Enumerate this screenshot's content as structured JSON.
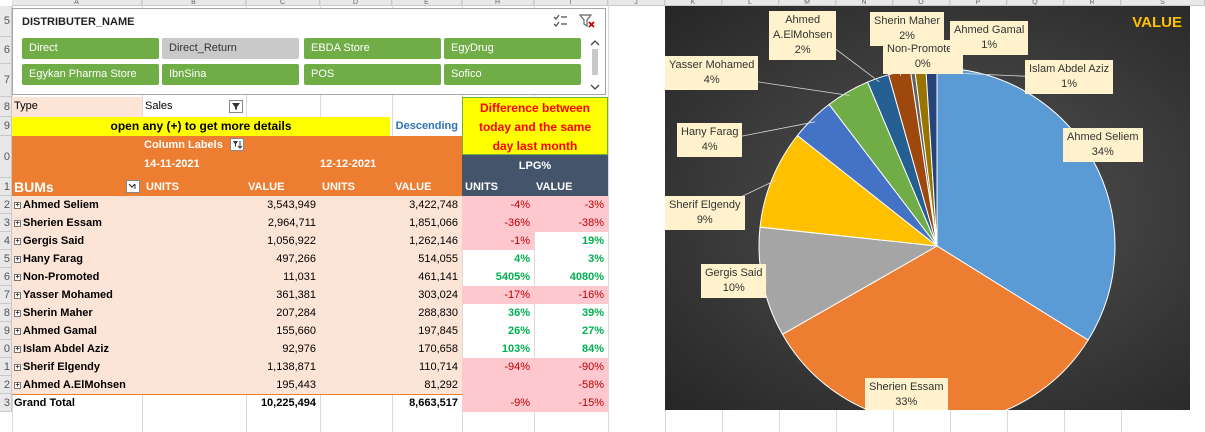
{
  "columns": [
    "A",
    "B",
    "C",
    "D",
    "E",
    "H",
    "I",
    "J",
    "K",
    "L",
    "M",
    "N",
    "O",
    "P",
    "Q",
    "R",
    "S"
  ],
  "rows": [
    "5",
    "6",
    "7",
    "8",
    "9",
    "0",
    "1",
    "2",
    "3",
    "4",
    "5",
    "6",
    "7",
    "8",
    "9",
    "0",
    "1",
    "2",
    "3"
  ],
  "slicer": {
    "title": "DISTRIBUTER_NAME",
    "items": [
      {
        "label": "Direct",
        "selected": true
      },
      {
        "label": "Direct_Return",
        "selected": false
      },
      {
        "label": "EBDA Store",
        "selected": true
      },
      {
        "label": "EgyDrug",
        "selected": true
      },
      {
        "label": "Egykan Pharma Store",
        "selected": true
      },
      {
        "label": "IbnSina",
        "selected": true
      },
      {
        "label": "POS",
        "selected": true
      },
      {
        "label": "Sofico",
        "selected": true
      }
    ],
    "multi_select_icon": "multi-select-icon",
    "clear_filter_icon": "clear-filter-icon"
  },
  "pivot": {
    "type_label": "Type",
    "sales_label": "Sales",
    "banner": "open any (+) to get more details",
    "descending": "Descending",
    "note": "Difference between today and the same day last month",
    "column_labels": "Column Labels",
    "date1": "14-11-2021",
    "date2": "12-12-2021",
    "lpg": "LPG%",
    "bums": "BUMs",
    "units": "UNITS",
    "value": "VALUE",
    "rows": [
      {
        "name": "Ahmed Seliem",
        "v1": "3,543,949",
        "v2": "3,422,748",
        "lu": "-4%",
        "lv": "-3%"
      },
      {
        "name": "Sherien Essam",
        "v1": "2,964,711",
        "v2": "1,851,066",
        "lu": "-36%",
        "lv": "-38%"
      },
      {
        "name": "Gergis Said",
        "v1": "1,056,922",
        "v2": "1,262,146",
        "lu": "-1%",
        "lv": "19%"
      },
      {
        "name": "Hany Farag",
        "v1": "497,266",
        "v2": "514,055",
        "lu": "4%",
        "lv": "3%"
      },
      {
        "name": "Non-Promoted",
        "v1": "11,031",
        "v2": "461,141",
        "lu": "5405%",
        "lv": "4080%"
      },
      {
        "name": "Yasser Mohamed",
        "v1": "361,381",
        "v2": "303,024",
        "lu": "-17%",
        "lv": "-16%"
      },
      {
        "name": "Sherin Maher",
        "v1": "207,284",
        "v2": "288,830",
        "lu": "36%",
        "lv": "39%"
      },
      {
        "name": "Ahmed Gamal",
        "v1": "155,660",
        "v2": "197,845",
        "lu": "26%",
        "lv": "27%"
      },
      {
        "name": "Islam Abdel Aziz",
        "v1": "92,976",
        "v2": "170,658",
        "lu": "103%",
        "lv": "84%"
      },
      {
        "name": "Sherif Elgendy",
        "v1": "1,138,871",
        "v2": "110,714",
        "lu": "-94%",
        "lv": "-90%"
      },
      {
        "name": "Ahmed A.ElMohsen",
        "v1": "195,443",
        "v2": "81,292",
        "lu": "",
        "lv": "-58%"
      }
    ],
    "total": {
      "name": "Grand Total",
      "v1": "10,225,494",
      "v2": "8,663,517",
      "lu": "-9%",
      "lv": "-15%"
    }
  },
  "chart_data": {
    "type": "pie",
    "title": "VALUE",
    "categories": [
      "Ahmed Seliem",
      "Sherien Essam",
      "Gergis Said",
      "Sherif Elgendy",
      "Hany Farag",
      "Yasser Mohamed",
      "Ahmed A.ElMohsen",
      "Sherin Maher",
      "Non-Promoted",
      "Ahmed Gamal",
      "Islam Abdel Aziz"
    ],
    "values": [
      34,
      33,
      10,
      9,
      4,
      4,
      2,
      2,
      0,
      1,
      1
    ],
    "labels": [
      "Ahmed Seliem\n34%",
      "Sherien Essam\n33%",
      "Gergis Said\n10%",
      "Sherif Elgendy\n9%",
      "Hany Farag\n4%",
      "Yasser Mohamed\n4%",
      "Ahmed\nA.ElMohsen\n2%",
      "Sherin Maher\n2%",
      "Non-Promoted\n0%",
      "Ahmed Gamal\n1%",
      "Islam Abdel Aziz\n1%"
    ],
    "colors": [
      "#5b9bd5",
      "#ed7d31",
      "#a5a5a5",
      "#ffc000",
      "#4472c4",
      "#70ad47",
      "#255e91",
      "#9e480e",
      "#636363",
      "#997300",
      "#264478"
    ]
  }
}
